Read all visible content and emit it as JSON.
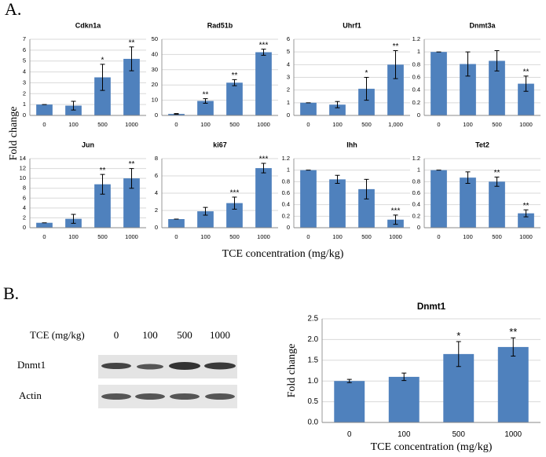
{
  "panel_a": {
    "label": "A.",
    "ylabel": "Fold change",
    "xlabel": "TCE concentration (mg/kg)"
  },
  "panel_b": {
    "label": "B.",
    "blot": {
      "header": "TCE (mg/kg)",
      "lanes": [
        "0",
        "100",
        "500",
        "1000"
      ],
      "rows": [
        "Dnmt1",
        "Actin"
      ]
    }
  },
  "chart_data": [
    {
      "type": "bar",
      "title": "Cdkn1a",
      "categories": [
        "0",
        "100",
        "500",
        "1000"
      ],
      "values": [
        1,
        0.9,
        3.5,
        5.2
      ],
      "errors": [
        0,
        0.4,
        1.2,
        1.1
      ],
      "annotations": [
        null,
        null,
        "*",
        "**"
      ],
      "color": "#4f81bd",
      "ylim": [
        0,
        7
      ],
      "yticks": [
        0,
        1,
        2,
        3,
        4,
        5,
        6,
        7
      ],
      "grid": true
    },
    {
      "type": "bar",
      "title": "Rad51b",
      "categories": [
        "0",
        "100",
        "500",
        "1000"
      ],
      "values": [
        1,
        9.5,
        21.5,
        41.5
      ],
      "errors": [
        0.2,
        1.5,
        2,
        2
      ],
      "annotations": [
        null,
        "**",
        "**",
        "***"
      ],
      "color": "#4f81bd",
      "ylim": [
        0,
        50
      ],
      "yticks": [
        0,
        10,
        20,
        30,
        40,
        50
      ],
      "grid": true
    },
    {
      "type": "bar",
      "title": "Uhrf1",
      "categories": [
        "0",
        "100",
        "500",
        "1,000"
      ],
      "values": [
        1,
        0.85,
        2.1,
        4
      ],
      "errors": [
        0,
        0.25,
        0.9,
        1.1
      ],
      "annotations": [
        null,
        null,
        "*",
        "**"
      ],
      "color": "#4f81bd",
      "ylim": [
        0,
        6
      ],
      "yticks": [
        0,
        1,
        2,
        3,
        4,
        5,
        6
      ],
      "grid": true
    },
    {
      "type": "bar",
      "title": "Dnmt3a",
      "categories": [
        "0",
        "100",
        "500",
        "1000"
      ],
      "values": [
        1,
        0.81,
        0.86,
        0.5
      ],
      "errors": [
        0,
        0.19,
        0.16,
        0.12
      ],
      "annotations": [
        null,
        null,
        null,
        "**"
      ],
      "color": "#4f81bd",
      "ylim": [
        0,
        1.2
      ],
      "yticks": [
        0,
        0.2,
        0.4,
        0.6,
        0.8,
        1,
        1.2
      ],
      "grid": true
    },
    {
      "type": "bar",
      "title": "Jun",
      "categories": [
        "0",
        "100",
        "500",
        "1000"
      ],
      "values": [
        1,
        1.8,
        8.8,
        10
      ],
      "errors": [
        0,
        0.9,
        2,
        2
      ],
      "annotations": [
        null,
        null,
        "**",
        "**"
      ],
      "color": "#4f81bd",
      "ylim": [
        0,
        14
      ],
      "yticks": [
        0,
        2,
        4,
        6,
        8,
        10,
        12,
        14
      ],
      "grid": true
    },
    {
      "type": "bar",
      "title": "ki67",
      "categories": [
        "0",
        "100",
        "500",
        "1000"
      ],
      "values": [
        1,
        1.9,
        2.85,
        6.9
      ],
      "errors": [
        0,
        0.45,
        0.7,
        0.55
      ],
      "annotations": [
        null,
        null,
        "***",
        "***"
      ],
      "color": "#4f81bd",
      "ylim": [
        0,
        8
      ],
      "yticks": [
        0,
        2,
        4,
        6,
        8
      ],
      "grid": true
    },
    {
      "type": "bar",
      "title": "Ihh",
      "categories": [
        "0",
        "100",
        "500",
        "1000"
      ],
      "values": [
        1,
        0.84,
        0.67,
        0.14
      ],
      "errors": [
        0,
        0.07,
        0.17,
        0.08
      ],
      "annotations": [
        null,
        null,
        null,
        "***"
      ],
      "color": "#4f81bd",
      "ylim": [
        0,
        1.2
      ],
      "yticks": [
        0,
        0.2,
        0.4,
        0.6,
        0.8,
        1,
        1.2
      ],
      "grid": true
    },
    {
      "type": "bar",
      "title": "Tet2",
      "categories": [
        "0",
        "100",
        "500",
        "1000"
      ],
      "values": [
        1,
        0.87,
        0.8,
        0.25
      ],
      "errors": [
        0,
        0.1,
        0.08,
        0.06
      ],
      "annotations": [
        null,
        null,
        "**",
        "**"
      ],
      "color": "#4f81bd",
      "ylim": [
        0,
        1.2
      ],
      "yticks": [
        0,
        0.2,
        0.4,
        0.6,
        0.8,
        1,
        1.2
      ],
      "grid": true
    },
    {
      "type": "bar",
      "title": "Dnmt1",
      "xlabel": "TCE concentration (mg/kg)",
      "ylabel": "Fold change",
      "categories": [
        "0",
        "100",
        "500",
        "1000"
      ],
      "values": [
        1,
        1.1,
        1.65,
        1.82
      ],
      "errors": [
        0.04,
        0.09,
        0.3,
        0.22
      ],
      "annotations": [
        null,
        null,
        "*",
        "**"
      ],
      "color": "#4f81bd",
      "ylim": [
        0,
        2.5
      ],
      "yticks": [
        {
          "value": 0,
          "label": "0.0"
        },
        {
          "value": 0.5,
          "label": "0.5"
        },
        {
          "value": 1,
          "label": "1.0"
        },
        {
          "value": 1.5,
          "label": "1.5"
        },
        {
          "value": 2,
          "label": "2.0"
        },
        {
          "value": 2.5,
          "label": "2.5"
        }
      ],
      "grid": true
    }
  ]
}
